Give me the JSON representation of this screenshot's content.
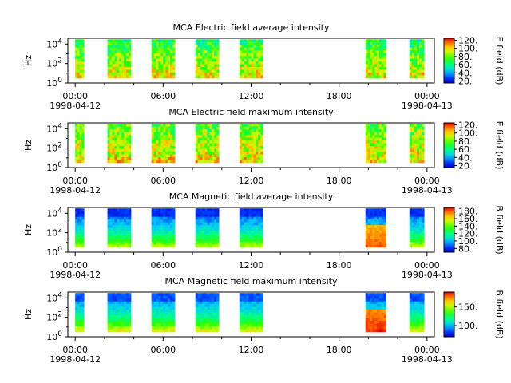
{
  "chart_data": [
    {
      "type": "heatmap",
      "title": "MCA  Electric field average intensity",
      "ylabel": "Hz",
      "colorbar_label": "E field (dB)",
      "colorbar_ticks": [
        "20.",
        "40.",
        "60.",
        "80.",
        "100.",
        "120."
      ],
      "colorbar_range": [
        15,
        125
      ],
      "x_ticks": [
        {
          "time": "00:00",
          "date": "1998-04-12"
        },
        {
          "time": "06:00",
          "date": ""
        },
        {
          "time": "12:00",
          "date": ""
        },
        {
          "time": "18:00",
          "date": ""
        },
        {
          "time": "00:00",
          "date": "1998-04-13"
        }
      ],
      "x_range_hours": [
        -0.5,
        24.5
      ],
      "y_scale": "log",
      "y_ticks": [
        "10^0",
        "10^2",
        "10^4"
      ],
      "y_range_log10": [
        0,
        4.6
      ],
      "data_segments_hours": [
        [
          0.0,
          0.6
        ],
        [
          2.2,
          3.8
        ],
        [
          5.2,
          6.8
        ],
        [
          8.2,
          9.8
        ],
        [
          11.2,
          12.8
        ],
        [
          19.8,
          21.2
        ],
        [
          22.8,
          23.8
        ]
      ],
      "y_coverage_log10": [
        0.5,
        4.5
      ],
      "intensity": "variable 30-100 dB, strongest at low frequencies"
    },
    {
      "type": "heatmap",
      "title": "MCA  Electric field maximum intensity",
      "ylabel": "Hz",
      "colorbar_label": "E field (dB)",
      "colorbar_ticks": [
        "20.",
        "40.",
        "60.",
        "80.",
        "100.",
        "120."
      ],
      "colorbar_range": [
        15,
        125
      ],
      "x_ticks": [
        {
          "time": "00:00",
          "date": "1998-04-12"
        },
        {
          "time": "06:00",
          "date": ""
        },
        {
          "time": "12:00",
          "date": ""
        },
        {
          "time": "18:00",
          "date": ""
        },
        {
          "time": "00:00",
          "date": "1998-04-13"
        }
      ],
      "x_range_hours": [
        -0.5,
        24.5
      ],
      "y_scale": "log",
      "y_ticks": [
        "10^0",
        "10^2",
        "10^4"
      ],
      "y_range_log10": [
        0,
        4.6
      ],
      "data_segments_hours": [
        [
          0.0,
          0.6
        ],
        [
          2.2,
          3.8
        ],
        [
          5.2,
          6.8
        ],
        [
          8.2,
          9.8
        ],
        [
          11.2,
          12.8
        ],
        [
          19.8,
          21.2
        ],
        [
          22.8,
          23.8
        ]
      ],
      "y_coverage_log10": [
        0.5,
        4.5
      ],
      "intensity": "variable 50-110 dB"
    },
    {
      "type": "heatmap",
      "title": "MCA  Magnetic field average intensity",
      "ylabel": "Hz",
      "colorbar_label": "B field (dB)",
      "colorbar_ticks": [
        "80.",
        "100.",
        "120.",
        "140.",
        "160.",
        "180."
      ],
      "colorbar_range": [
        70,
        190
      ],
      "x_ticks": [
        {
          "time": "00:00",
          "date": "1998-04-12"
        },
        {
          "time": "06:00",
          "date": ""
        },
        {
          "time": "12:00",
          "date": ""
        },
        {
          "time": "18:00",
          "date": ""
        },
        {
          "time": "00:00",
          "date": "1998-04-13"
        }
      ],
      "x_range_hours": [
        -0.5,
        24.5
      ],
      "y_scale": "log",
      "y_ticks": [
        "10^0",
        "10^2",
        "10^4"
      ],
      "y_range_log10": [
        0,
        4.6
      ],
      "data_segments_hours": [
        [
          0.0,
          0.6
        ],
        [
          2.2,
          3.8
        ],
        [
          5.2,
          6.8
        ],
        [
          8.2,
          9.8
        ],
        [
          11.2,
          12.8
        ],
        [
          19.8,
          21.2
        ],
        [
          22.8,
          23.8
        ]
      ],
      "y_coverage_log10": [
        0.5,
        4.5
      ],
      "intensity": "decreasing with frequency; low 120-140 dB, high 80 dB; segment 19.8-21.2 h up to 170 dB"
    },
    {
      "type": "heatmap",
      "title": "MCA  Magnetic field maximum intensity",
      "ylabel": "Hz",
      "colorbar_label": "B field (dB)",
      "colorbar_ticks": [
        "100.",
        "150."
      ],
      "colorbar_range": [
        70,
        190
      ],
      "x_ticks": [
        {
          "time": "00:00",
          "date": "1998-04-12"
        },
        {
          "time": "06:00",
          "date": ""
        },
        {
          "time": "12:00",
          "date": ""
        },
        {
          "time": "18:00",
          "date": ""
        },
        {
          "time": "00:00",
          "date": "1998-04-13"
        }
      ],
      "x_range_hours": [
        -0.5,
        24.5
      ],
      "y_scale": "log",
      "y_ticks": [
        "10^0",
        "10^2",
        "10^4"
      ],
      "y_range_log10": [
        0,
        4.6
      ],
      "data_segments_hours": [
        [
          0.0,
          0.6
        ],
        [
          2.2,
          3.8
        ],
        [
          5.2,
          6.8
        ],
        [
          8.2,
          9.8
        ],
        [
          11.2,
          12.8
        ],
        [
          19.8,
          21.2
        ],
        [
          22.8,
          23.8
        ]
      ],
      "y_coverage_log10": [
        0.5,
        4.5
      ],
      "intensity": "decreasing with frequency; low 130-150 dB, high 90 dB; segment 19.8-21.2 h up to 175 dB"
    }
  ]
}
